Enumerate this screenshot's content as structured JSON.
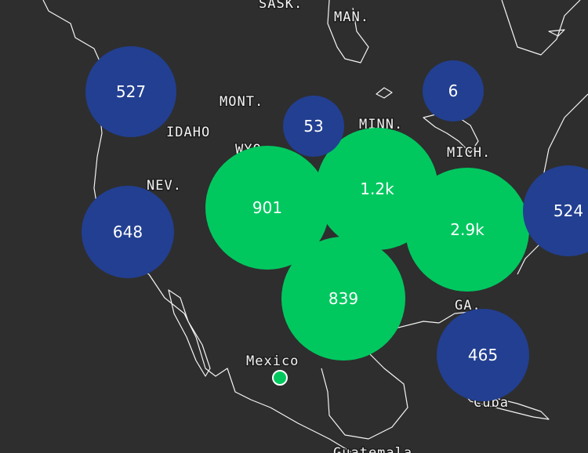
{
  "map_labels": [
    "SASK.",
    "MAN.",
    "MONT.",
    "IDAHO",
    "WYO.",
    "NEV.",
    "MINN.",
    "MICH.",
    "GA.",
    "Mexico",
    "Cuba",
    "Guatemala"
  ],
  "clusters": [
    {
      "value": 901,
      "color": "#00c85f"
    },
    {
      "value": 1200,
      "label": "1.2k",
      "color": "#00c85f"
    },
    {
      "value": 2900,
      "label": "2.9k",
      "color": "#00c85f"
    },
    {
      "value": 839,
      "color": "#00c85f"
    },
    {
      "value": 527,
      "color": "#223f91"
    },
    {
      "value": 648,
      "color": "#223f91"
    },
    {
      "value": 53,
      "color": "#223f91"
    },
    {
      "value": 6,
      "color": "#223f91"
    },
    {
      "value": 524,
      "color": "#223f91"
    },
    {
      "value": 465,
      "color": "#223f91"
    }
  ]
}
